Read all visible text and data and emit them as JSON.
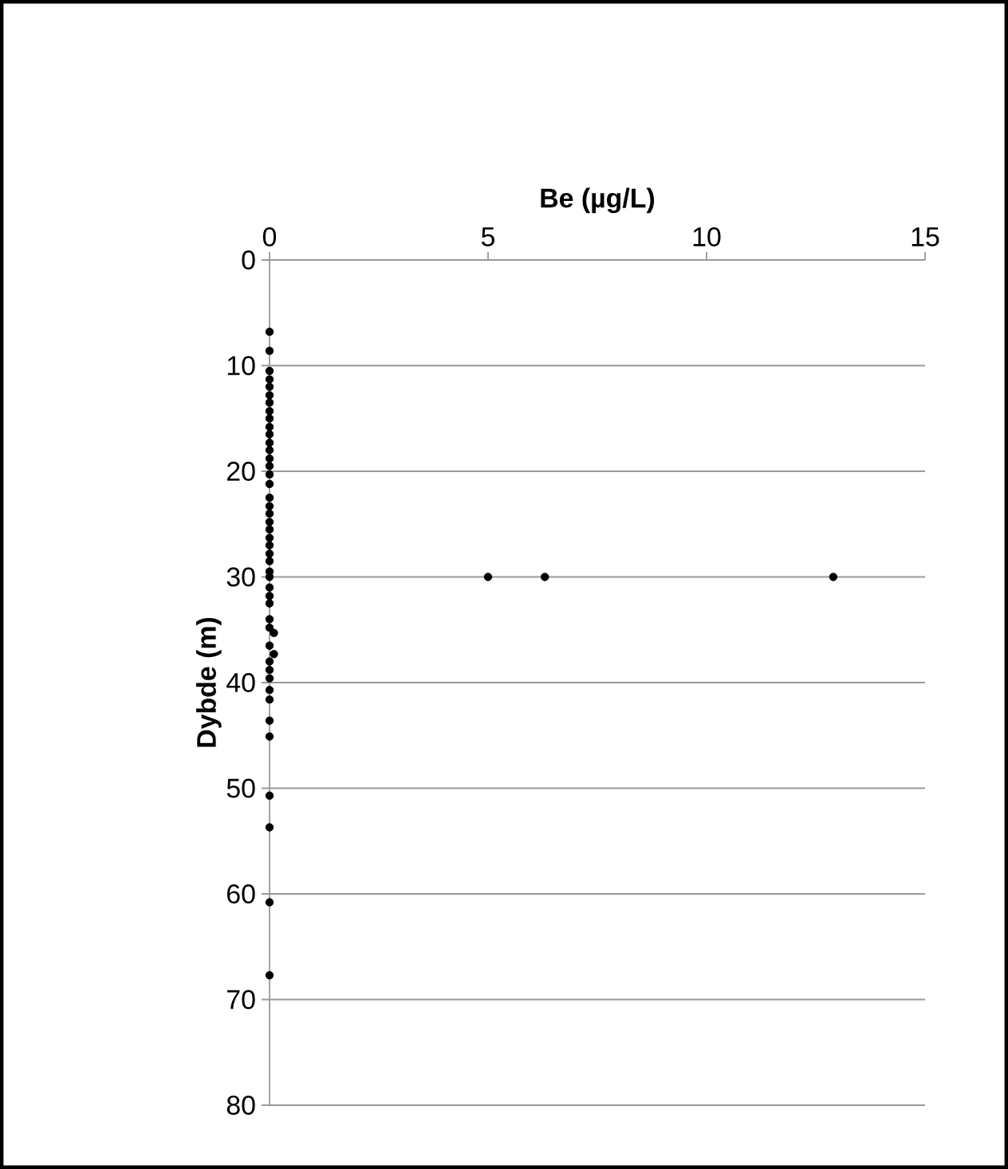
{
  "chart_data": {
    "type": "scatter",
    "xlabel": "Be (µg/L)",
    "ylabel": "Dybde (m)",
    "x": [
      0,
      0,
      0,
      0,
      0,
      0,
      0,
      0,
      0,
      0,
      0,
      0,
      0,
      0,
      0,
      0,
      0,
      0,
      0,
      0,
      0,
      0,
      0,
      0,
      0,
      5,
      6.3,
      12.9,
      0,
      0,
      0,
      0,
      0,
      0,
      0.1,
      0,
      0,
      0.1,
      0,
      0,
      0,
      0,
      0,
      0,
      0,
      0,
      0,
      0,
      0,
      0
    ],
    "values": [
      6.8,
      8.6,
      10.5,
      11.3,
      12,
      12.8,
      13.5,
      14.3,
      15,
      15.8,
      16.5,
      17.3,
      18,
      18.8,
      19.5,
      20.3,
      21.2,
      22.5,
      23.3,
      24,
      24.8,
      25.5,
      26.3,
      27,
      27.8,
      30,
      30,
      30,
      28.5,
      29.5,
      30,
      31,
      31.8,
      32.5,
      35.3,
      34,
      34.8,
      37.3,
      36.5,
      38,
      38.8,
      39.6,
      40.7,
      41.6,
      43.6,
      45.1,
      50.7,
      53.7,
      60.8,
      67.7
    ],
    "color": "#000000",
    "marker": "circle",
    "xlim": [
      0,
      15
    ],
    "xticks": [
      0,
      5,
      10,
      15
    ],
    "ylim": [
      80,
      0
    ],
    "yticks": [
      0,
      10,
      20,
      30,
      40,
      50,
      60,
      70,
      80
    ],
    "grid": "y"
  }
}
